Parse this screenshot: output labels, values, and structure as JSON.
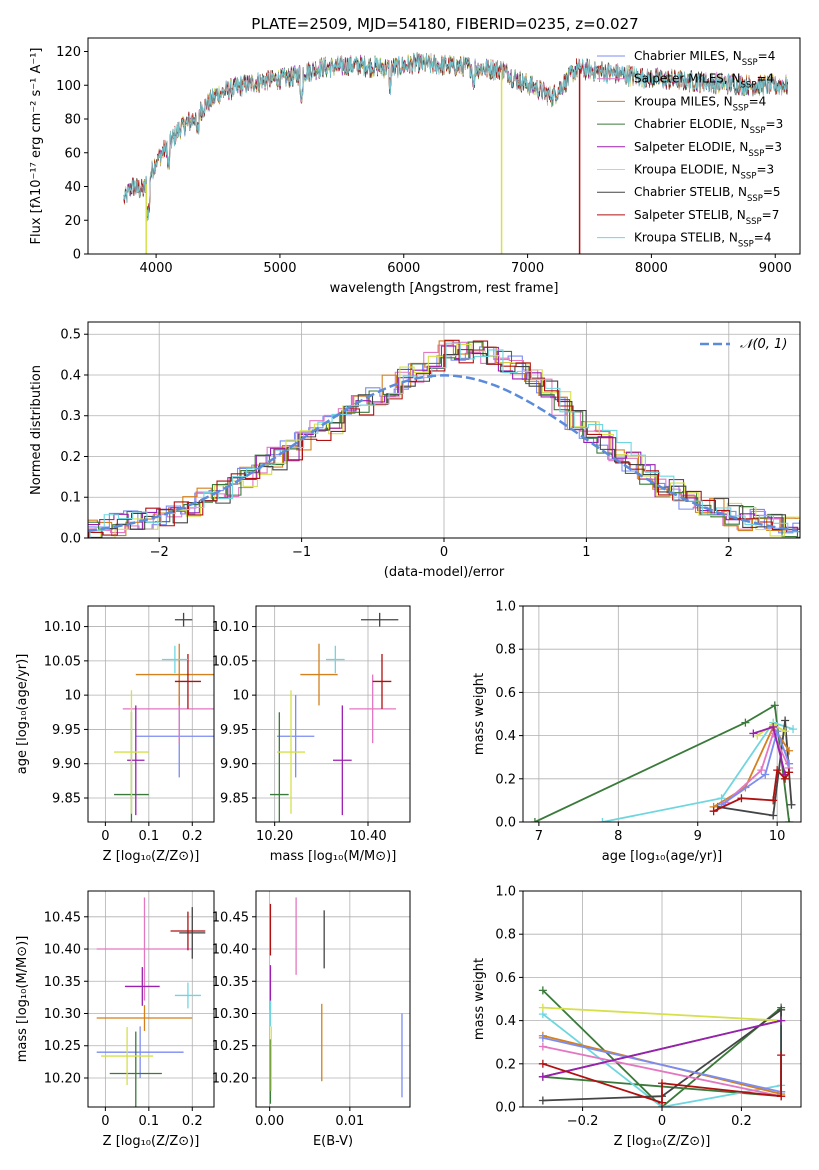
{
  "figure": {
    "title": "PLATE=2509, MJD=54180, FIBERID=0235, z=0.027"
  },
  "legend_entries": [
    {
      "prefix": "Chabrier MILES, N",
      "sub": "SSP",
      "suffix": "=4",
      "color": "#7b8cf2"
    },
    {
      "prefix": "Salpeter MILES, N",
      "sub": "SSP",
      "suffix": "=4",
      "color": "#e377c2"
    },
    {
      "prefix": "Kroupa MILES, N",
      "sub": "SSP",
      "suffix": "=4",
      "color": "#d3801e"
    },
    {
      "prefix": "Chabrier ELODIE, N",
      "sub": "SSP",
      "suffix": "=3",
      "color": "#3a7a3a"
    },
    {
      "prefix": "Salpeter ELODIE, N",
      "sub": "SSP",
      "suffix": "=3",
      "color": "#9b1fb0"
    },
    {
      "prefix": "Kroupa ELODIE, N",
      "sub": "SSP",
      "suffix": "=3",
      "color": "#d6e04a"
    },
    {
      "prefix": "Chabrier STELIB, N",
      "sub": "SSP",
      "suffix": "=5",
      "color": "#444444"
    },
    {
      "prefix": "Salpeter STELIB, N",
      "sub": "SSP",
      "suffix": "=7",
      "color": "#b01010"
    },
    {
      "prefix": "Kroupa STELIB, N",
      "sub": "SSP",
      "suffix": "=4",
      "color": "#6fd6e0"
    }
  ],
  "hist_legend": "𝒩(0, 1)",
  "chart_data": [
    {
      "id": "spectrum",
      "type": "line",
      "xlabel": "wavelength [Angstrom, rest frame]",
      "ylabel": "Flux [fλ10⁻¹⁷ erg cm⁻² s⁻¹ A⁻¹]",
      "xlim": [
        3450,
        9200
      ],
      "ylim": [
        0,
        128
      ],
      "xticks": [
        4000,
        5000,
        6000,
        7000,
        8000,
        9000
      ],
      "yticks": [
        0,
        20,
        40,
        60,
        80,
        100,
        120
      ],
      "grid": false,
      "legend": "upper right",
      "x_range": [
        3740,
        9100
      ],
      "continuum": [
        [
          3740,
          32
        ],
        [
          3800,
          40
        ],
        [
          3900,
          38
        ],
        [
          4000,
          55
        ],
        [
          4100,
          65
        ],
        [
          4200,
          75
        ],
        [
          4300,
          80
        ],
        [
          4400,
          88
        ],
        [
          4500,
          95
        ],
        [
          4700,
          100
        ],
        [
          4900,
          103
        ],
        [
          5100,
          105
        ],
        [
          5300,
          110
        ],
        [
          5600,
          112
        ],
        [
          5900,
          110
        ],
        [
          6100,
          113
        ],
        [
          6300,
          112
        ],
        [
          6500,
          111
        ],
        [
          6800,
          109
        ],
        [
          6900,
          104
        ],
        [
          7100,
          97
        ],
        [
          7200,
          93
        ],
        [
          7400,
          110
        ],
        [
          7600,
          108
        ],
        [
          8000,
          104
        ],
        [
          8400,
          102
        ],
        [
          8800,
          100
        ],
        [
          9100,
          100
        ]
      ],
      "dropouts": [
        {
          "x": 3920,
          "series": "Kroupa ELODIE"
        },
        {
          "x": 6790,
          "series": "Kroupa ELODIE"
        },
        {
          "x": 7420,
          "series": "Salpeter STELIB"
        }
      ]
    },
    {
      "id": "residual_hist",
      "type": "histogram",
      "xlabel": "(data-model)/error",
      "ylabel": "Normed distribution",
      "xlim": [
        -2.5,
        2.5
      ],
      "ylim": [
        0,
        0.53
      ],
      "xticks": [
        -2,
        -1,
        0,
        1,
        2
      ],
      "yticks": [
        0.0,
        0.1,
        0.2,
        0.3,
        0.4,
        0.5
      ],
      "grid": true,
      "bin_width": 0.1,
      "reference_curve": {
        "name": "𝒩(0, 1)",
        "mean": 0,
        "sigma": 1,
        "color": "#5b8bd9"
      },
      "envelope": [
        [
          -2.5,
          0.025
        ],
        [
          -2.0,
          0.05
        ],
        [
          -1.5,
          0.13
        ],
        [
          -1.0,
          0.24
        ],
        [
          -0.5,
          0.35
        ],
        [
          -0.2,
          0.41
        ],
        [
          0.0,
          0.46
        ],
        [
          0.3,
          0.45
        ],
        [
          0.6,
          0.4
        ],
        [
          1.0,
          0.26
        ],
        [
          1.5,
          0.13
        ],
        [
          2.0,
          0.055
        ],
        [
          2.5,
          0.02
        ]
      ]
    },
    {
      "id": "age_vs_Z",
      "type": "errorbar",
      "xlabel": "Z [log₁₀(Z/Z⊙)]",
      "ylabel": "age  [log₁₀(age/yr)]",
      "xlim": [
        -0.04,
        0.25
      ],
      "ylim": [
        9.815,
        10.13
      ],
      "xticks": [
        0.0,
        0.1,
        0.2
      ],
      "yticks": [
        9.85,
        9.9,
        9.95,
        10.0,
        10.05,
        10.1
      ],
      "grid": true,
      "points": [
        {
          "x": 0.17,
          "xerr": 0.1,
          "y": 9.94,
          "yerr": 0.06,
          "color": "#7b8cf2"
        },
        {
          "x": 0.17,
          "xerr": 0.13,
          "y": 9.98,
          "yerr": 0.05,
          "color": "#e377c2"
        },
        {
          "x": 0.17,
          "xerr": 0.1,
          "y": 10.03,
          "yerr": 0.045,
          "color": "#d3801e"
        },
        {
          "x": 0.06,
          "xerr": 0.04,
          "y": 9.855,
          "yerr": 0.12,
          "color": "#3a7a3a"
        },
        {
          "x": 0.07,
          "xerr": 0.02,
          "y": 9.905,
          "yerr": 0.08,
          "color": "#9b1fb0"
        },
        {
          "x": 0.06,
          "xerr": 0.04,
          "y": 9.917,
          "yerr": 0.09,
          "color": "#d6e04a"
        },
        {
          "x": 0.18,
          "xerr": 0.02,
          "y": 10.11,
          "yerr": 0.01,
          "color": "#444444"
        },
        {
          "x": 0.19,
          "xerr": 0.03,
          "y": 10.02,
          "yerr": 0.04,
          "color": "#b01010"
        },
        {
          "x": 0.16,
          "xerr": 0.03,
          "y": 10.052,
          "yerr": 0.02,
          "color": "#6fd6e0"
        }
      ]
    },
    {
      "id": "age_vs_mass",
      "type": "errorbar",
      "xlabel": "mass [log₁₀(M/M⊙)]",
      "ylabel": "",
      "xlim": [
        10.16,
        10.49
      ],
      "ylim": [
        9.815,
        10.13
      ],
      "xticks": [
        10.2,
        10.4
      ],
      "yticks": [
        9.85,
        9.9,
        9.95,
        10.0,
        10.05,
        10.1
      ],
      "grid": true,
      "points": [
        {
          "x": 10.245,
          "xerr": 0.04,
          "y": 9.94,
          "yerr": 0.06,
          "color": "#7b8cf2"
        },
        {
          "x": 10.41,
          "xerr": 0.05,
          "y": 9.98,
          "yerr": 0.05,
          "color": "#e377c2"
        },
        {
          "x": 10.295,
          "xerr": 0.04,
          "y": 10.03,
          "yerr": 0.045,
          "color": "#d3801e"
        },
        {
          "x": 10.21,
          "xerr": 0.02,
          "y": 9.855,
          "yerr": 0.12,
          "color": "#3a7a3a"
        },
        {
          "x": 10.345,
          "xerr": 0.02,
          "y": 9.905,
          "yerr": 0.08,
          "color": "#9b1fb0"
        },
        {
          "x": 10.235,
          "xerr": 0.03,
          "y": 9.917,
          "yerr": 0.09,
          "color": "#d6e04a"
        },
        {
          "x": 10.425,
          "xerr": 0.04,
          "y": 10.11,
          "yerr": 0.01,
          "color": "#444444"
        },
        {
          "x": 10.43,
          "xerr": 0.02,
          "y": 10.02,
          "yerr": 0.04,
          "color": "#b01010"
        },
        {
          "x": 10.33,
          "xerr": 0.02,
          "y": 10.052,
          "yerr": 0.02,
          "color": "#6fd6e0"
        }
      ]
    },
    {
      "id": "mass_weight_vs_age",
      "type": "line",
      "xlabel": "age  [log₁₀(age/yr)]",
      "ylabel": "mass weight",
      "xlim": [
        6.8,
        10.3
      ],
      "ylim": [
        0,
        1
      ],
      "xticks": [
        7,
        8,
        9,
        10
      ],
      "yticks": [
        0.0,
        0.2,
        0.4,
        0.6,
        0.8,
        1.0
      ],
      "grid": true,
      "series": [
        {
          "color": "#3a7a3a",
          "points": [
            [
              6.95,
              0.0
            ],
            [
              9.6,
              0.46
            ],
            [
              9.97,
              0.54
            ],
            [
              10.15,
              0.0
            ]
          ]
        },
        {
          "color": "#6fd6e0",
          "points": [
            [
              7.8,
              0.0
            ],
            [
              9.3,
              0.11
            ],
            [
              9.95,
              0.46
            ],
            [
              10.2,
              0.43
            ]
          ]
        },
        {
          "color": "#444444",
          "points": [
            [
              9.25,
              0.07
            ],
            [
              9.95,
              0.03
            ],
            [
              10.1,
              0.47
            ],
            [
              10.18,
              0.08
            ]
          ]
        },
        {
          "color": "#d3801e",
          "points": [
            [
              9.2,
              0.07
            ],
            [
              9.6,
              0.16
            ],
            [
              9.95,
              0.44
            ],
            [
              10.15,
              0.33
            ]
          ]
        },
        {
          "color": "#e377c2",
          "points": [
            [
              9.35,
              0.09
            ],
            [
              9.8,
              0.24
            ],
            [
              9.95,
              0.41
            ],
            [
              10.15,
              0.25
            ]
          ]
        },
        {
          "color": "#7b8cf2",
          "points": [
            [
              9.3,
              0.08
            ],
            [
              9.85,
              0.22
            ],
            [
              10.0,
              0.42
            ],
            [
              10.15,
              0.27
            ]
          ]
        },
        {
          "color": "#d6e04a",
          "points": [
            [
              9.75,
              0.4
            ],
            [
              9.95,
              0.45
            ],
            [
              10.1,
              0.42
            ]
          ]
        },
        {
          "color": "#9b1fb0",
          "points": [
            [
              9.7,
              0.41
            ],
            [
              9.95,
              0.44
            ],
            [
              10.1,
              0.22
            ]
          ]
        },
        {
          "color": "#b01010",
          "points": [
            [
              9.2,
              0.05
            ],
            [
              9.55,
              0.11
            ],
            [
              9.95,
              0.1
            ],
            [
              10.0,
              0.24
            ],
            [
              10.1,
              0.2
            ],
            [
              10.15,
              0.23
            ]
          ]
        }
      ]
    },
    {
      "id": "mass_vs_Z",
      "type": "errorbar",
      "xlabel": "Z [log₁₀(Z/Z⊙)]",
      "ylabel": "mass [log₁₀(M/M⊙)]",
      "xlim": [
        -0.04,
        0.25
      ],
      "ylim": [
        10.155,
        10.49
      ],
      "xticks": [
        0.0,
        0.1,
        0.2
      ],
      "yticks": [
        10.2,
        10.25,
        10.3,
        10.35,
        10.4,
        10.45
      ],
      "grid": true,
      "points": [
        {
          "x": 0.08,
          "xerr": 0.1,
          "y": 10.24,
          "yerr": 0.04,
          "color": "#7b8cf2"
        },
        {
          "x": 0.09,
          "xerr": 0.11,
          "y": 10.4,
          "yerr": 0.08,
          "color": "#e377c2"
        },
        {
          "x": 0.09,
          "xerr": 0.11,
          "y": 10.293,
          "yerr": 0.02,
          "color": "#d3801e"
        },
        {
          "x": 0.07,
          "xerr": 0.06,
          "y": 10.207,
          "yerr": 0.065,
          "color": "#3a7a3a"
        },
        {
          "x": 0.085,
          "xerr": 0.04,
          "y": 10.342,
          "yerr": 0.03,
          "color": "#9b1fb0"
        },
        {
          "x": 0.05,
          "xerr": 0.06,
          "y": 10.234,
          "yerr": 0.045,
          "color": "#d6e04a"
        },
        {
          "x": 0.2,
          "xerr": 0.03,
          "y": 10.425,
          "yerr": 0.04,
          "color": "#444444"
        },
        {
          "x": 0.19,
          "xerr": 0.04,
          "y": 10.428,
          "yerr": 0.03,
          "color": "#b01010"
        },
        {
          "x": 0.19,
          "xerr": 0.03,
          "y": 10.328,
          "yerr": 0.02,
          "color": "#6fd6e0"
        }
      ]
    },
    {
      "id": "mass_vs_ebv",
      "type": "errorbar",
      "xlabel": "E(B-V)",
      "ylabel": "",
      "xlim": [
        -0.0017,
        0.0175
      ],
      "ylim": [
        10.155,
        10.49
      ],
      "xticks": [
        0.0,
        0.01
      ],
      "xtick_labels": [
        "0.00",
        "0.01"
      ],
      "yticks": [
        10.2,
        10.25,
        10.3,
        10.35,
        10.4,
        10.45
      ],
      "grid": true,
      "points": [
        {
          "x": 0.0165,
          "xerr": 0,
          "y": 10.235,
          "yerr": 0.065,
          "color": "#7b8cf2"
        },
        {
          "x": 0.0033,
          "xerr": 0,
          "y": 10.42,
          "yerr": 0.06,
          "color": "#e377c2"
        },
        {
          "x": 0.0065,
          "xerr": 0,
          "y": 10.255,
          "yerr": 0.06,
          "color": "#d3801e"
        },
        {
          "x": 0.0001,
          "xerr": 0,
          "y": 10.21,
          "yerr": 0.05,
          "color": "#3a7a3a"
        },
        {
          "x": 0.0001,
          "xerr": 0,
          "y": 10.34,
          "yerr": 0.035,
          "color": "#9b1fb0"
        },
        {
          "x": 0.0002,
          "xerr": 0,
          "y": 10.23,
          "yerr": 0.05,
          "color": "#d6e04a"
        },
        {
          "x": 0.0068,
          "xerr": 0,
          "y": 10.415,
          "yerr": 0.045,
          "color": "#444444"
        },
        {
          "x": 0.0001,
          "xerr": 0,
          "y": 10.43,
          "yerr": 0.04,
          "color": "#b01010"
        },
        {
          "x": 0.0001,
          "xerr": 0,
          "y": 10.3,
          "yerr": 0.02,
          "color": "#6fd6e0"
        }
      ]
    },
    {
      "id": "mass_weight_vs_Z",
      "type": "line",
      "xlabel": "Z [log₁₀(Z/Z⊙)]",
      "ylabel": "mass weight",
      "xlim": [
        -0.35,
        0.35
      ],
      "ylim": [
        0,
        1
      ],
      "xticks": [
        -0.2,
        0.0,
        0.2
      ],
      "yticks": [
        0.0,
        0.2,
        0.4,
        0.6,
        0.8,
        1.0
      ],
      "grid": true,
      "series": [
        {
          "color": "#3a7a3a",
          "points": [
            [
              -0.3,
              0.54
            ],
            [
              0.0,
              0.0
            ],
            [
              0.3,
              0.46
            ],
            [
              0.3,
              0.05
            ],
            [
              -0.3,
              0.14
            ],
            [
              0.3,
              0.4
            ]
          ]
        },
        {
          "color": "#6fd6e0",
          "points": [
            [
              -0.3,
              0.43
            ],
            [
              0.0,
              0.0
            ],
            [
              0.3,
              0.1
            ],
            [
              0.3,
              0.4
            ]
          ]
        },
        {
          "color": "#444444",
          "points": [
            [
              -0.3,
              0.03
            ],
            [
              0.0,
              0.05
            ],
            [
              0.3,
              0.45
            ],
            [
              0.3,
              0.07
            ]
          ]
        },
        {
          "color": "#d3801e",
          "points": [
            [
              -0.3,
              0.33
            ],
            [
              0.3,
              0.06
            ]
          ]
        },
        {
          "color": "#e377c2",
          "points": [
            [
              -0.3,
              0.28
            ],
            [
              0.3,
              0.05
            ]
          ]
        },
        {
          "color": "#7b8cf2",
          "points": [
            [
              -0.3,
              0.32
            ],
            [
              0.3,
              0.07
            ]
          ]
        },
        {
          "color": "#d6e04a",
          "points": [
            [
              -0.3,
              0.46
            ],
            [
              0.3,
              0.4
            ]
          ]
        },
        {
          "color": "#9b1fb0",
          "points": [
            [
              -0.3,
              0.14
            ],
            [
              0.3,
              0.4
            ]
          ]
        },
        {
          "color": "#b01010",
          "points": [
            [
              -0.3,
              0.2
            ],
            [
              0.0,
              0.02
            ],
            [
              0.0,
              0.11
            ],
            [
              0.3,
              0.05
            ],
            [
              0.3,
              0.24
            ]
          ]
        }
      ]
    }
  ]
}
